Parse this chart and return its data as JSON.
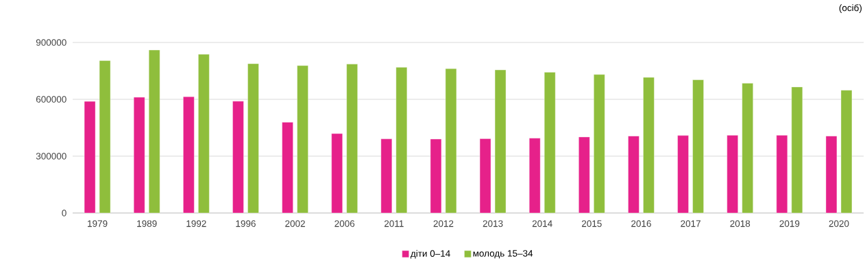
{
  "chart_data": {
    "type": "bar",
    "categories": [
      "1979",
      "1989",
      "1992",
      "1996",
      "2002",
      "2006",
      "2011",
      "2012",
      "2013",
      "2014",
      "2015",
      "2016",
      "2017",
      "2018",
      "2019",
      "2020"
    ],
    "series": [
      {
        "name": "діти 0–14",
        "color": "#e6218a",
        "values": [
          589000,
          611000,
          614000,
          590000,
          479000,
          419000,
          391000,
          390000,
          392000,
          395000,
          401000,
          406000,
          409000,
          410000,
          410000,
          406000
        ]
      },
      {
        "name": "молодь 15–34",
        "color": "#8fbe3c",
        "values": [
          804000,
          860000,
          838000,
          788000,
          778000,
          786000,
          769000,
          762000,
          755000,
          743000,
          731000,
          716000,
          703000,
          685000,
          665000,
          648000
        ]
      }
    ],
    "ylim": [
      0,
      900000
    ],
    "yticks": [
      0,
      300000,
      600000,
      900000
    ],
    "grid": "y",
    "legend": "bottom",
    "annotations": [
      "(осіб)"
    ]
  }
}
